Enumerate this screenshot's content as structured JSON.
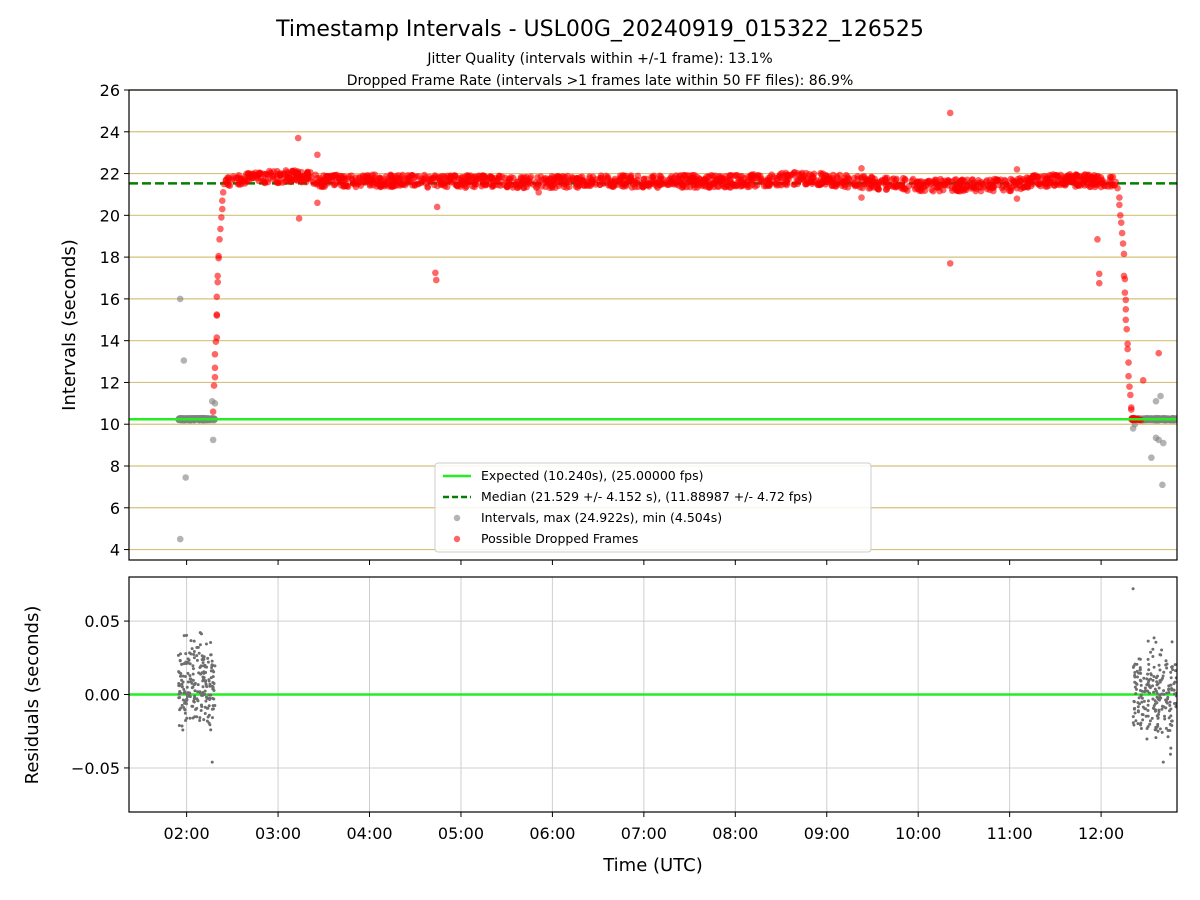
{
  "chart_data": [
    {
      "panel": "top",
      "type": "scatter",
      "title": "Timestamp Intervals - USL00G_20240919_015322_126525",
      "subtitle_lines": [
        "Jitter Quality (intervals within +/-1 frame): 13.1%",
        "Dropped Frame Rate (intervals >1 frames late within 50 FF files): 86.9%"
      ],
      "xlabel": "",
      "ylabel": "Intervals (seconds)",
      "x_unit": "hours UTC",
      "xlim": [
        1.37,
        12.83
      ],
      "ylim": [
        3.5,
        26
      ],
      "yticks": [
        4,
        6,
        8,
        10,
        12,
        14,
        16,
        18,
        20,
        22,
        24,
        26
      ],
      "ytick_labels": [
        "4",
        "6",
        "8",
        "10",
        "12",
        "14",
        "16",
        "18",
        "20",
        "22",
        "24",
        "26"
      ],
      "grid": "horizontal",
      "grid_color": "#d4c27a",
      "legend_placement": "lower-center",
      "lines": [
        {
          "name": "Expected (10.240s), (25.00000 fps)",
          "y": 10.24,
          "color": "#22ee22",
          "style": "solid"
        },
        {
          "name": "Median (21.529 +/- 4.152 s), (11.88987 +/- 4.72 fps)",
          "y": 21.529,
          "color": "#008000",
          "style": "dashed"
        }
      ],
      "series": [
        {
          "name": "Intervals, max (24.922s), min (4.504s)",
          "color": "#808080",
          "points": [
            [
              1.93,
              16.0
            ],
            [
              1.97,
              13.05
            ],
            [
              1.99,
              7.45
            ],
            [
              1.93,
              4.5
            ],
            [
              2.28,
              11.1
            ],
            [
              2.31,
              11.0
            ],
            [
              2.29,
              9.25
            ],
            [
              12.35,
              9.8
            ],
            [
              12.37,
              10.0
            ],
            [
              12.55,
              8.4
            ],
            [
              12.6,
              9.35
            ],
            [
              12.63,
              9.25
            ],
            [
              12.6,
              11.1
            ],
            [
              12.65,
              11.35
            ],
            [
              12.68,
              9.1
            ],
            [
              12.67,
              7.1
            ]
          ],
          "bands": [
            {
              "x": [
                1.91,
                2.31
              ],
              "y_center": 10.24,
              "y_spread": 0.05,
              "count": 200
            },
            {
              "x": [
                12.35,
                12.83
              ],
              "y_center": 10.24,
              "y_spread": 0.05,
              "count": 200
            }
          ]
        },
        {
          "name": "Possible Dropped Frames",
          "color": "#ff0000",
          "points": [
            [
              3.22,
              23.7
            ],
            [
              3.43,
              22.9
            ],
            [
              3.43,
              20.6
            ],
            [
              3.23,
              19.85
            ],
            [
              4.74,
              20.4
            ],
            [
              4.72,
              17.25
            ],
            [
              4.73,
              16.9
            ],
            [
              5.85,
              21.1
            ],
            [
              9.38,
              22.25
            ],
            [
              9.38,
              20.85
            ],
            [
              10.35,
              24.9
            ],
            [
              10.35,
              17.7
            ],
            [
              11.08,
              22.2
            ],
            [
              11.08,
              20.8
            ],
            [
              11.96,
              18.85
            ],
            [
              11.98,
              17.2
            ],
            [
              11.98,
              16.75
            ],
            [
              12.46,
              12.1
            ],
            [
              12.63,
              13.4
            ]
          ],
          "ramp_up": [
            [
              2.29,
              10.6
            ],
            [
              2.3,
              11.85
            ],
            [
              2.31,
              12.25
            ],
            [
              2.31,
              12.7
            ],
            [
              2.31,
              13.35
            ],
            [
              2.32,
              13.95
            ],
            [
              2.33,
              14.15
            ],
            [
              2.33,
              15.2
            ],
            [
              2.33,
              15.25
            ],
            [
              2.33,
              16.1
            ],
            [
              2.34,
              16.8
            ],
            [
              2.34,
              17.1
            ],
            [
              2.35,
              17.95
            ],
            [
              2.35,
              18.05
            ],
            [
              2.36,
              18.85
            ],
            [
              2.37,
              19.35
            ],
            [
              2.38,
              19.9
            ],
            [
              2.39,
              20.3
            ],
            [
              2.39,
              20.7
            ],
            [
              2.4,
              21.1
            ],
            [
              2.41,
              21.5
            ],
            [
              2.43,
              21.7
            ]
          ],
          "ramp_down": [
            [
              12.16,
              21.6
            ],
            [
              12.18,
              21.3
            ],
            [
              12.2,
              20.85
            ],
            [
              12.2,
              20.5
            ],
            [
              12.21,
              20.0
            ],
            [
              12.22,
              19.65
            ],
            [
              12.23,
              19.15
            ],
            [
              12.24,
              18.65
            ],
            [
              12.25,
              18.15
            ],
            [
              12.25,
              17.1
            ],
            [
              12.26,
              16.95
            ],
            [
              12.26,
              16.3
            ],
            [
              12.27,
              15.95
            ],
            [
              12.27,
              15.5
            ],
            [
              12.27,
              15.0
            ],
            [
              12.28,
              14.55
            ],
            [
              12.29,
              13.85
            ],
            [
              12.29,
              13.6
            ],
            [
              12.3,
              12.95
            ],
            [
              12.3,
              12.3
            ],
            [
              12.31,
              11.8
            ],
            [
              12.32,
              11.4
            ],
            [
              12.33,
              10.8
            ],
            [
              12.33,
              10.7
            ]
          ],
          "band_profile": [
            [
              2.43,
              21.7
            ],
            [
              2.6,
              21.75
            ],
            [
              3.0,
              21.85
            ],
            [
              3.2,
              21.9
            ],
            [
              3.5,
              21.65
            ],
            [
              4.0,
              21.65
            ],
            [
              5.0,
              21.62
            ],
            [
              6.0,
              21.6
            ],
            [
              7.0,
              21.62
            ],
            [
              8.0,
              21.63
            ],
            [
              8.7,
              21.78
            ],
            [
              9.0,
              21.7
            ],
            [
              9.5,
              21.55
            ],
            [
              10.0,
              21.45
            ],
            [
              10.5,
              21.42
            ],
            [
              11.0,
              21.45
            ],
            [
              11.2,
              21.6
            ],
            [
              11.5,
              21.7
            ],
            [
              12.0,
              21.65
            ],
            [
              12.15,
              21.65
            ]
          ],
          "band_spread": 0.3,
          "tail": {
            "x": [
              12.33,
              12.45
            ],
            "y_center": 10.24,
            "count": 20
          }
        }
      ]
    },
    {
      "panel": "bottom",
      "type": "scatter",
      "xlabel": "Time (UTC)",
      "ylabel": "Residuals (seconds)",
      "x_unit": "hours UTC",
      "xlim": [
        1.37,
        12.83
      ],
      "ylim": [
        -0.08,
        0.08
      ],
      "yticks": [
        -0.05,
        0.0,
        0.05
      ],
      "ytick_labels": [
        "−0.05",
        "0.00",
        "0.05"
      ],
      "xticks": [
        2,
        3,
        4,
        5,
        6,
        7,
        8,
        9,
        10,
        11,
        12
      ],
      "xtick_labels": [
        "02:00",
        "03:00",
        "04:00",
        "05:00",
        "06:00",
        "07:00",
        "08:00",
        "09:00",
        "10:00",
        "11:00",
        "12:00"
      ],
      "grid": "both",
      "zero_line": {
        "y": 0,
        "color": "#22ee22"
      },
      "series": [
        {
          "name": "",
          "color": "#6e6e6e",
          "points": [
            [
              2.28,
              -0.046
            ],
            [
              12.35,
              0.072
            ],
            [
              12.68,
              -0.046
            ]
          ],
          "clusters": [
            {
              "x": [
                1.91,
                2.31
              ],
              "y_range": [
                -0.037,
                0.053
              ],
              "count": 220
            },
            {
              "x": [
                12.35,
                12.83
              ],
              "y_range": [
                -0.047,
                0.048
              ],
              "count": 220
            }
          ]
        }
      ]
    }
  ]
}
